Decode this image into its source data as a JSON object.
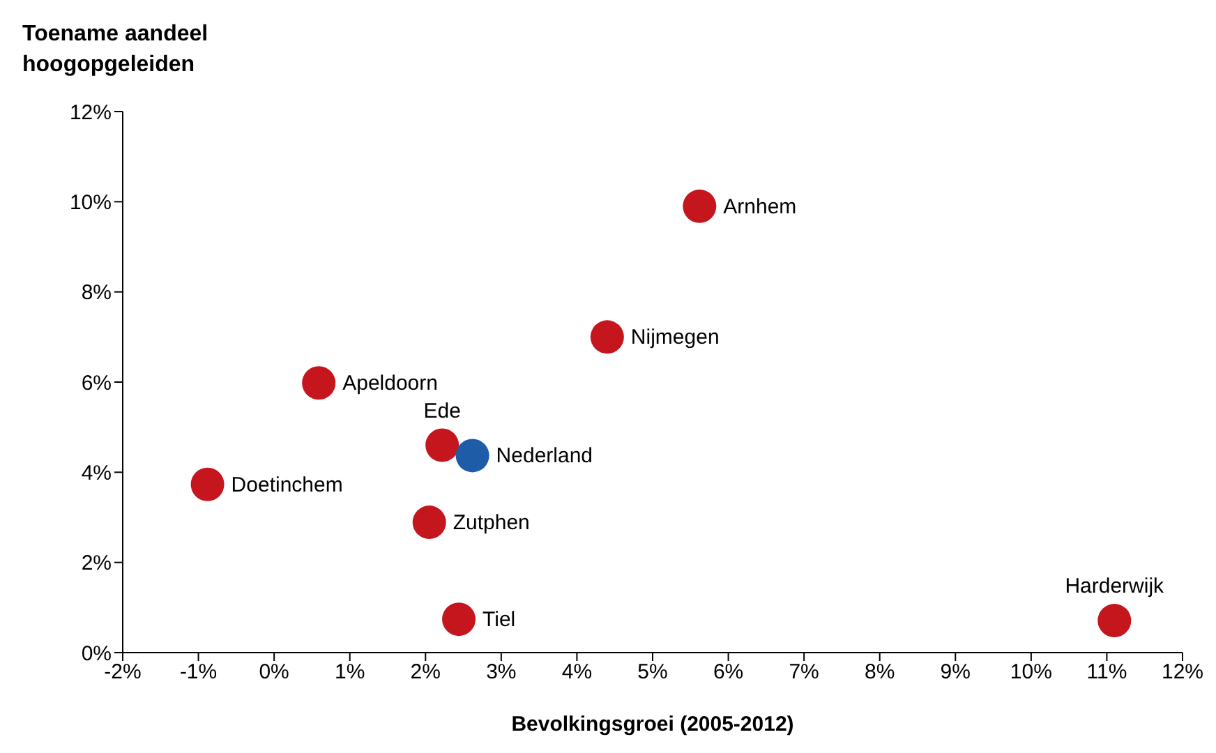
{
  "chart_data": {
    "type": "scatter",
    "xlabel": "Bevolkingsgroei (2005-2012)",
    "ylabel": "Toename aandeel hoogopgeleiden",
    "series": [
      {
        "color": "#c4161c",
        "x": [
          5.62,
          4.4,
          0.59,
          2.22,
          -0.88,
          2.05,
          2.44,
          11.1
        ],
        "values": [
          9.9,
          7.0,
          5.98,
          4.6,
          3.73,
          2.89,
          0.74,
          0.71
        ]
      },
      {
        "color": "#1f5ca8",
        "x": [
          2.62
        ],
        "values": [
          4.37
        ]
      }
    ],
    "xlim": [
      -2,
      12
    ],
    "xticks": [
      {
        "value": -2,
        "label": "-2%"
      },
      {
        "value": -1,
        "label": "-1%"
      },
      {
        "value": 0,
        "label": "0%"
      },
      {
        "value": 1,
        "label": "1%"
      },
      {
        "value": 2,
        "label": "2%"
      },
      {
        "value": 3,
        "label": "3%"
      },
      {
        "value": 4,
        "label": "4%"
      },
      {
        "value": 5,
        "label": "5%"
      },
      {
        "value": 6,
        "label": "6%"
      },
      {
        "value": 7,
        "label": "7%"
      },
      {
        "value": 8,
        "label": "8%"
      },
      {
        "value": 9,
        "label": "9%"
      },
      {
        "value": 10,
        "label": "10%"
      },
      {
        "value": 11,
        "label": "11%"
      },
      {
        "value": 12,
        "label": "12%"
      }
    ],
    "ylim": [
      0,
      12
    ],
    "yticks": [
      {
        "value": 0,
        "label": "0%"
      },
      {
        "value": 2,
        "label": "2%"
      },
      {
        "value": 4,
        "label": "4%"
      },
      {
        "value": 6,
        "label": "6%"
      },
      {
        "value": 8,
        "label": "8%"
      },
      {
        "value": 10,
        "label": "10%"
      },
      {
        "value": 12,
        "label": "12%"
      }
    ],
    "marker": "circle",
    "grid": false,
    "legend": false,
    "annotations": [
      {
        "text": "Arnhem",
        "x": 5.62,
        "y": 9.9
      },
      {
        "text": "Nijmegen",
        "x": 4.4,
        "y": 7.0
      },
      {
        "text": "Apeldoorn",
        "x": 0.59,
        "y": 5.98
      },
      {
        "text": "Ede",
        "x": 2.22,
        "y": 4.6
      },
      {
        "text": "Nederland",
        "x": 2.62,
        "y": 4.37
      },
      {
        "text": "Doetinchem",
        "x": -0.88,
        "y": 3.73
      },
      {
        "text": "Zutphen",
        "x": 2.05,
        "y": 2.89
      },
      {
        "text": "Tiel",
        "x": 2.44,
        "y": 0.74
      },
      {
        "text": "Harderwijk",
        "x": 11.1,
        "y": 0.71
      }
    ]
  }
}
